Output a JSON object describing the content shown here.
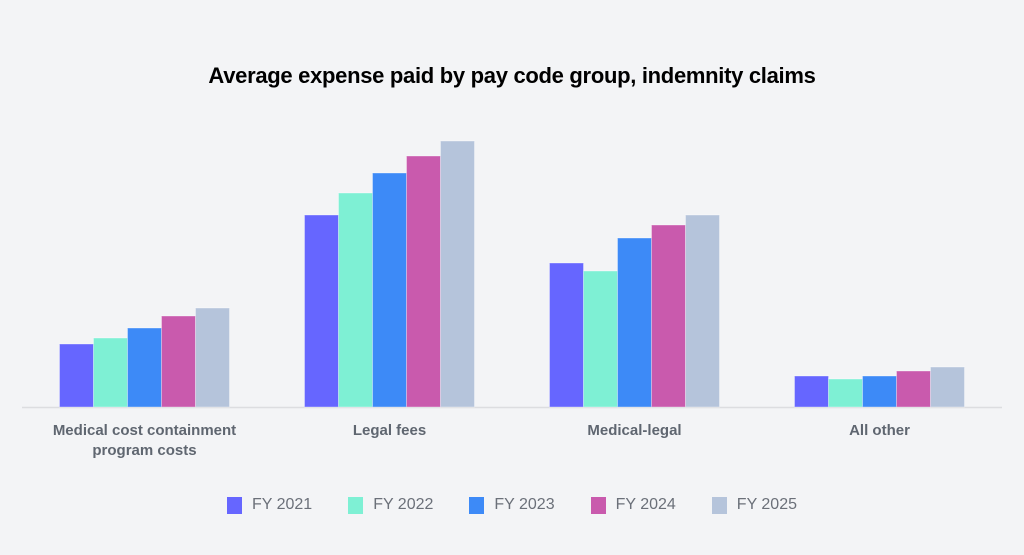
{
  "chart_data": {
    "type": "bar",
    "title": "Average expense paid by pay code group, indemnity claims",
    "xlabel": "",
    "ylabel": "",
    "y_axis_visible": false,
    "grid": false,
    "legend_position": "bottom",
    "ylim": [
      0,
      300
    ],
    "value_units": "relative (no axis shown; estimated from bar heights)",
    "categories": [
      [
        "Medical cost containment",
        "program costs"
      ],
      [
        "Legal fees"
      ],
      [
        "Medical-legal"
      ],
      [
        "All other"
      ]
    ],
    "series": [
      {
        "name": "FY 2021",
        "color": "#6666ff",
        "values": [
          63,
          192,
          144,
          31
        ]
      },
      {
        "name": "FY 2022",
        "color": "#7ef0d4",
        "values": [
          69,
          214,
          136,
          28
        ]
      },
      {
        "name": "FY 2023",
        "color": "#3d8af7",
        "values": [
          79,
          234,
          169,
          31
        ]
      },
      {
        "name": "FY 2024",
        "color": "#c95aad",
        "values": [
          91,
          251,
          182,
          36
        ]
      },
      {
        "name": "FY 2025",
        "color": "#b5c4db",
        "values": [
          99,
          266,
          192,
          40
        ]
      }
    ]
  }
}
